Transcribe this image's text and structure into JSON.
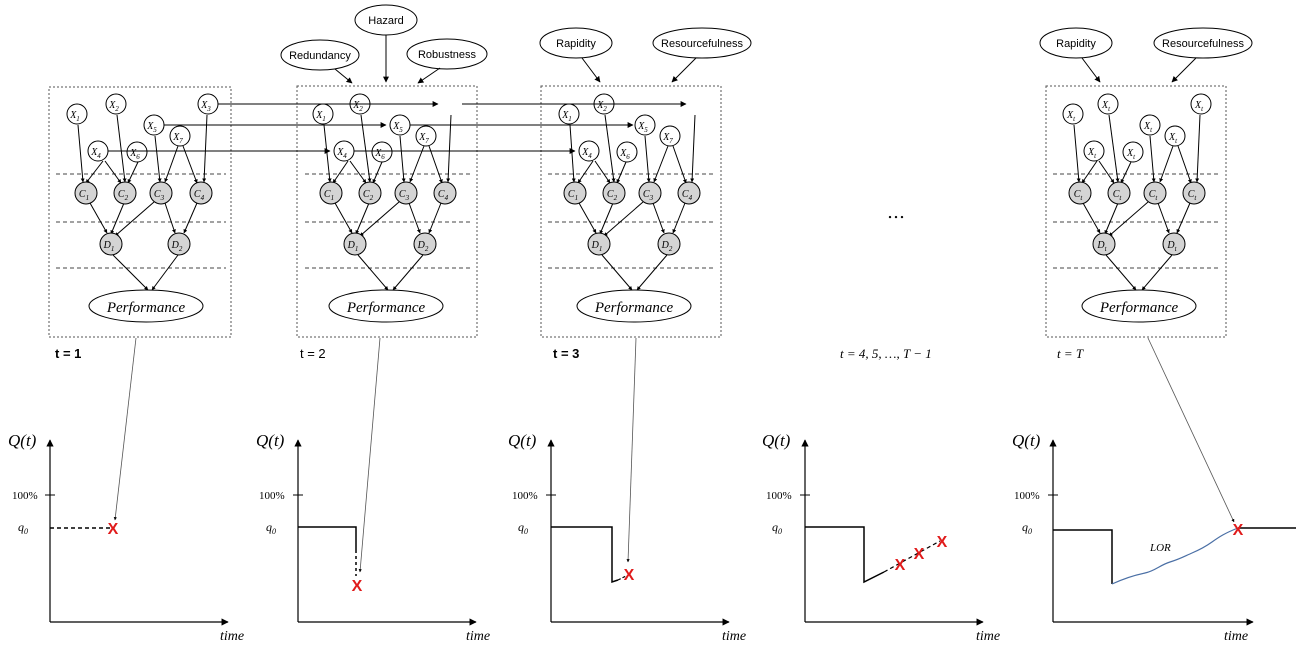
{
  "colors": {
    "node_fill_gray": "#d4d4d4",
    "marker_red": "#e01b1b",
    "recovery_blue": "#4a6fa5",
    "line": "#000000"
  },
  "top_labels": {
    "hazard": "Hazard",
    "redundancy": "Redundancy",
    "robustness": "Robustness",
    "rapidity": "Rapidity",
    "resourcefulness": "Resourcefulness"
  },
  "performance_label": "Performance",
  "node_labels": {
    "x1": "X",
    "x2": "X",
    "x3": "X",
    "x4": "X",
    "x5": "X",
    "x6": "X",
    "x7": "X",
    "c": "C",
    "d": "D"
  },
  "subscripts": {
    "s1": "1",
    "s2": "2",
    "s3": "3",
    "s4": "4",
    "s5": "5",
    "s6": "6",
    "s7": "7",
    "st": "t"
  },
  "time_step_labels": {
    "t1": "t = 1",
    "t2": "t = 2",
    "t3": "t = 3",
    "t_mid": "t = 4, 5, …, T − 1",
    "t_last": "t = T"
  },
  "ellipsis": "…",
  "plots": {
    "ylabel": "Q(t)",
    "xlabel": "time",
    "tick_100": "100%",
    "tick_q0": "q",
    "tick_q0_sub": "0",
    "lor_label": "LOR",
    "marker": "X"
  }
}
